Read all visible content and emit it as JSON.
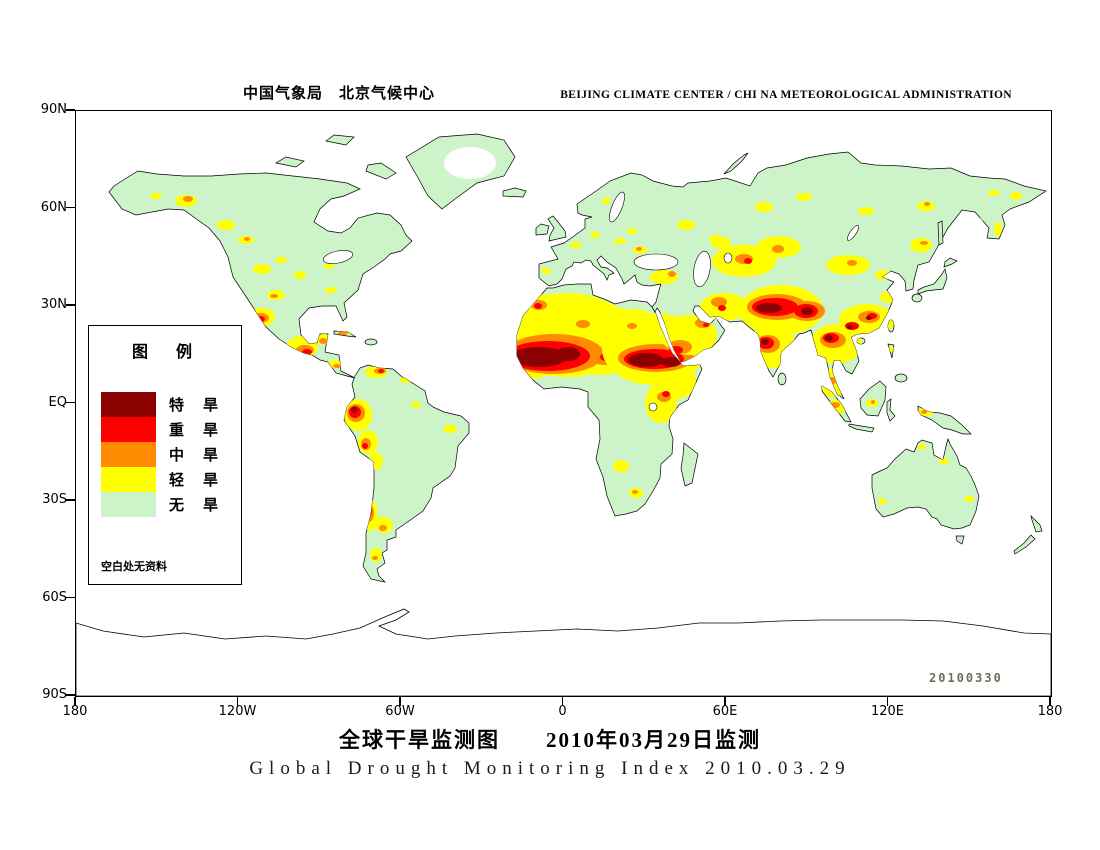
{
  "header": {
    "title_cn": "中国气象局　北京气候中心",
    "title_en": "BEIJING CLIMATE CENTER / CHI NA METEOROLOGICAL ADMINISTRATION"
  },
  "map": {
    "lat_labels": [
      "90N",
      "60N",
      "30N",
      "EQ",
      "30S",
      "60S",
      "90S"
    ],
    "lon_labels": [
      "180",
      "120W",
      "60W",
      "0",
      "60E",
      "120E",
      "180"
    ],
    "date_stamp": "20100330",
    "ocean_color": "#FFFFFF"
  },
  "legend": {
    "title": "图　例",
    "items": [
      {
        "label": "特　旱",
        "level": "extreme",
        "color": "#8B0000"
      },
      {
        "label": "重　旱",
        "level": "severe",
        "color": "#FF0000"
      },
      {
        "label": "中　旱",
        "level": "moderate",
        "color": "#FF8C00"
      },
      {
        "label": "轻　旱",
        "level": "light",
        "color": "#FFFF00"
      },
      {
        "label": "无　旱",
        "level": "none",
        "color": "#CCF4C8"
      }
    ],
    "note": "空白处无资料"
  },
  "footer": {
    "title_cn": "全球干旱监测图　　2010年03月29日监测",
    "title_en": "Global Drought Monitoring Index  2010.03.29"
  },
  "chart_data": {
    "type": "heatmap",
    "subtype": "global-drought-category-map",
    "projection": "equirectangular",
    "lon_range": [
      -180,
      180
    ],
    "lat_range": [
      -90,
      90
    ],
    "monitoring_date": "2010.03.29",
    "issue_stamp": "20100330",
    "categories": [
      {
        "name": "特旱 (extreme drought)",
        "color": "#8B0000"
      },
      {
        "name": "重旱 (severe drought)",
        "color": "#FF0000"
      },
      {
        "name": "中旱 (moderate drought)",
        "color": "#FF8C00"
      },
      {
        "name": "轻旱 (light drought)",
        "color": "#FFFF00"
      },
      {
        "name": "无旱 (no drought)",
        "color": "#CCF4C8"
      },
      {
        "name": "空白 无资料 (blank = no data)",
        "color": "#FFFFFF"
      }
    ],
    "major_drought_regions": [
      {
        "region": "West Africa / Sahel (Senegal-Mali-Niger)",
        "max_severity": "extreme"
      },
      {
        "region": "Sudan / Ethiopia / Horn of Africa",
        "max_severity": "extreme"
      },
      {
        "region": "Northern India / Himalayan belt",
        "max_severity": "extreme"
      },
      {
        "region": "Central India",
        "max_severity": "extreme"
      },
      {
        "region": "Indochina peninsula / Yunnan",
        "max_severity": "extreme"
      },
      {
        "region": "Southern China",
        "max_severity": "severe"
      },
      {
        "region": "Southwest Arabian Peninsula",
        "max_severity": "severe"
      },
      {
        "region": "Morocco / Northwest Africa",
        "max_severity": "severe"
      },
      {
        "region": "Northwest and Southern Mexico / Central America",
        "max_severity": "severe"
      },
      {
        "region": "Ecuador / Northern Peru",
        "max_severity": "extreme"
      },
      {
        "region": "Central Chile",
        "max_severity": "extreme"
      },
      {
        "region": "Central Asia / Kazakhstan",
        "max_severity": "severe"
      },
      {
        "region": "Scattered spots: North America, Europe, Siberia, Maritime Continent, Australia",
        "max_severity": "moderate"
      }
    ]
  }
}
